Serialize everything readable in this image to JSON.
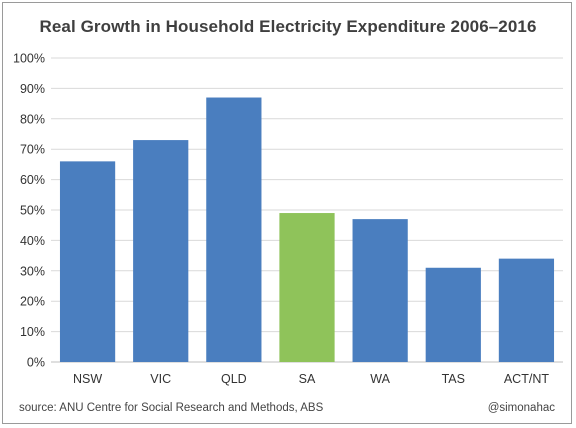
{
  "chart_data": {
    "type": "bar",
    "title": "Real Growth in Household Electricity Expenditure 2006–2016",
    "categories": [
      "NSW",
      "VIC",
      "QLD",
      "SA",
      "WA",
      "TAS",
      "ACT/NT"
    ],
    "values": [
      66,
      73,
      87,
      49,
      47,
      31,
      34
    ],
    "bar_colors": [
      "#4a7ebf",
      "#4a7ebf",
      "#4a7ebf",
      "#8fc35a",
      "#4a7ebf",
      "#4a7ebf",
      "#4a7ebf"
    ],
    "ylim": [
      0,
      100
    ],
    "yticks": [
      "0%",
      "10%",
      "20%",
      "30%",
      "40%",
      "50%",
      "60%",
      "70%",
      "80%",
      "90%",
      "100%"
    ],
    "grid": true,
    "xlabel": "",
    "ylabel": "",
    "legend": "none"
  },
  "footer": {
    "source": "source: ANU Centre for Social Research and Methods, ABS",
    "credit": "@simonahac"
  },
  "colors": {
    "primary_bar": "#4a7ebf",
    "highlight_bar": "#8fc35a",
    "gridline": "#d9d9d9"
  }
}
